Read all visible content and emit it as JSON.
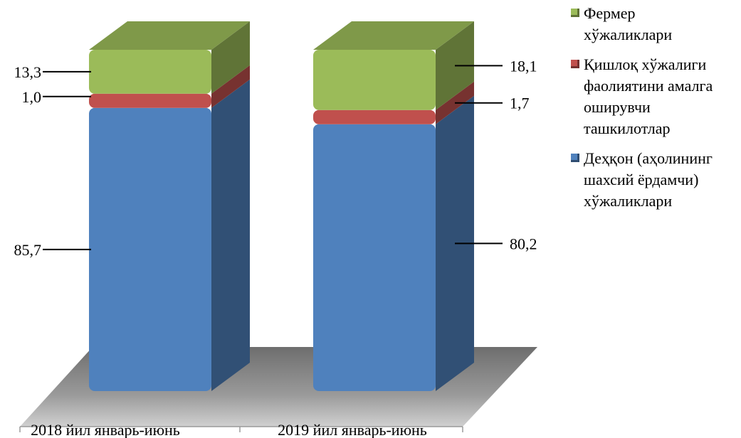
{
  "chart_data": {
    "type": "bar",
    "stacked": true,
    "three_d": true,
    "categories": [
      "2018 йил январь-июнь",
      "2019 йил январь-июнь"
    ],
    "series": [
      {
        "name": "Деҳқон (аҳолининг шахсий ёрдамчи) хўжаликлари",
        "values": [
          85.7,
          80.2
        ],
        "labels": [
          "85,7",
          "80,2"
        ],
        "color": "#4f81bd"
      },
      {
        "name": "Қишлоқ хўжалиги фаолиятини амалга оширувчи ташкилотлар",
        "values": [
          1.0,
          1.7
        ],
        "labels": [
          "1,0",
          "1,7"
        ],
        "color": "#c0504d"
      },
      {
        "name": "Фермер хўжаликлари",
        "values": [
          13.3,
          18.1
        ],
        "labels": [
          "13,3",
          "18,1"
        ],
        "color": "#9bbb59"
      }
    ],
    "legend_position": "right",
    "grid": false,
    "ylim": [
      0,
      100
    ]
  },
  "legend": {
    "items": [
      {
        "lines": [
          "Фермер",
          "хўжаликлари"
        ],
        "color": "#9bbb59"
      },
      {
        "lines": [
          "Қишлоқ хўжалиги",
          "фаолиятини амалга",
          "оширувчи",
          "ташкилотлар"
        ],
        "color": "#c0504d"
      },
      {
        "lines": [
          "Деҳқон (аҳолининг",
          "шахсий ёрдамчи)",
          "хўжаликлари"
        ],
        "color": "#4f81bd"
      }
    ]
  }
}
